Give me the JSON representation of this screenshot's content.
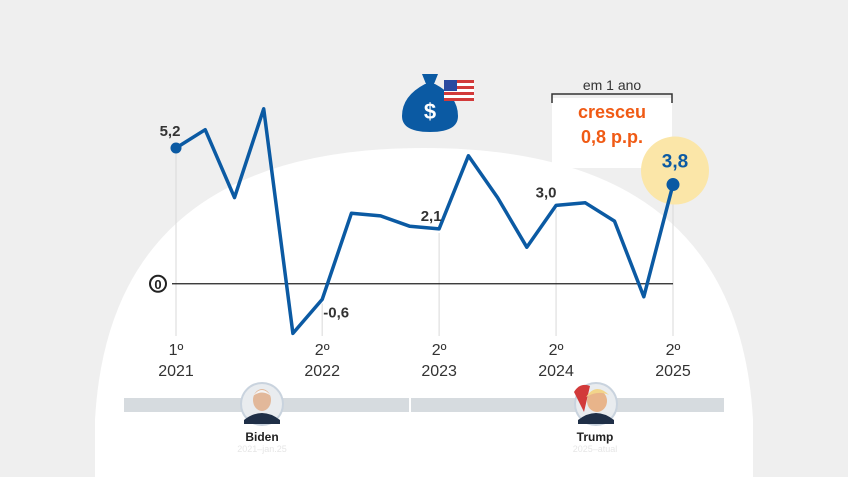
{
  "colors": {
    "background": "#efefef",
    "panel": "#ffffff",
    "line": "#0b5aa3",
    "accent": "#f05a14",
    "highlight": "#fbe6a8",
    "text": "#333333",
    "timeline_bar": "#d6dbdf"
  },
  "icon": {
    "name": "money-bag-us-flag-icon",
    "symbol": "$"
  },
  "callout": {
    "period": "em 1 ano",
    "verb": "cresceu",
    "amount": "0,8 p.p."
  },
  "chart_data": {
    "type": "line",
    "x": [
      1,
      2,
      3,
      4,
      5,
      6,
      7,
      8,
      9,
      10,
      11,
      12,
      13,
      14,
      15,
      16,
      17,
      18
    ],
    "series": [
      {
        "values": [
          5.2,
          5.9,
          3.3,
          6.7,
          -1.9,
          -0.6,
          2.7,
          2.6,
          2.2,
          2.1,
          4.9,
          3.3,
          1.4,
          3.0,
          3.1,
          2.4,
          -0.5,
          3.8
        ]
      }
    ],
    "ylim": [
      -2.0,
      7.0
    ],
    "zero_label": "0",
    "point_labels": [
      {
        "index": 0,
        "text": "5,2"
      },
      {
        "index": 5,
        "text": "-0,6"
      },
      {
        "index": 9,
        "text": "2,1"
      },
      {
        "index": 13,
        "text": "3,0"
      },
      {
        "index": 17,
        "text": "3,8"
      }
    ],
    "x_ticks": [
      {
        "index": 0,
        "quarter": "1º",
        "year": "2021"
      },
      {
        "index": 5,
        "quarter": "2º",
        "year": "2022"
      },
      {
        "index": 9,
        "quarter": "2º",
        "year": "2023"
      },
      {
        "index": 13,
        "quarter": "2º",
        "year": "2024"
      },
      {
        "index": 17,
        "quarter": "2º",
        "year": "2025"
      }
    ],
    "grid": false
  },
  "timeline": {
    "presidents": [
      {
        "name": "Biden",
        "period": "2021–jan.25"
      },
      {
        "name": "Trump",
        "period": "2025–atual"
      }
    ]
  }
}
